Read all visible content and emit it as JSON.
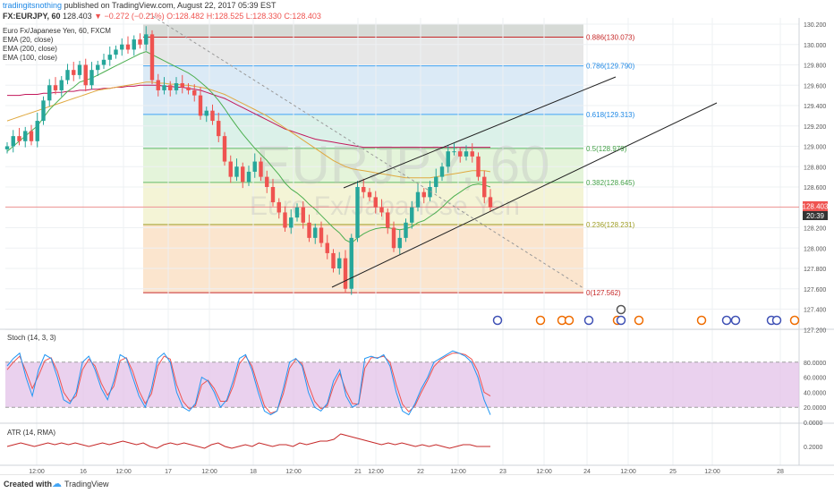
{
  "header": {
    "publisher": "tradingitsnothing",
    "published_text": "published on TradingView.com, August 22, 2017 05:39 EST",
    "symbol": "FX:EURJPY, 60",
    "last": "128.403",
    "change": "−0.272 (−0.21%)",
    "ohlc_o": "O:128.482",
    "ohlc_h": "H:128.525",
    "ohlc_l": "L:128.330",
    "ohlc_c": "C:128.403"
  },
  "legend": {
    "name": "Euro Fx/Japanese Yen, 60, FXCM",
    "ema20": "EMA (20, close)",
    "ema200": "EMA (200, close)",
    "ema100": "EMA (100, close)"
  },
  "watermark": {
    "symbol": "EURJPY, 60",
    "name": "Euro Fx/Japanese Yen"
  },
  "price_tag": {
    "value": "128.403",
    "countdown": "20:39"
  },
  "footer": {
    "created_with": "Created with",
    "brand": "TradingView"
  },
  "chart_data": [
    {
      "type": "candlestick",
      "title": "Euro Fx/Japanese Yen, 60, FXCM",
      "y_ticks": [
        "130.200",
        "130.000",
        "129.800",
        "129.600",
        "129.400",
        "129.200",
        "129.000",
        "128.800",
        "128.600",
        "128.400",
        "128.200",
        "128.000",
        "127.800",
        "127.600",
        "127.400",
        "127.200"
      ],
      "x_ticks": [
        "12:00",
        "16",
        "12:00",
        "17",
        "12:00",
        "18",
        "12:00",
        "21",
        "12:00",
        "22",
        "12:00",
        "23",
        "12:00",
        "24",
        "12:00",
        "25",
        "12:00",
        "28"
      ],
      "ylim": [
        127.2,
        130.2
      ],
      "fibonacci": [
        {
          "level": "0.886",
          "value": 130.073
        },
        {
          "level": "0.786",
          "value": 129.79
        },
        {
          "level": "0.618",
          "value": 129.313
        },
        {
          "level": "0.5",
          "value": 128.979
        },
        {
          "level": "0.382",
          "value": 128.645
        },
        {
          "level": "0.236",
          "value": 128.231
        },
        {
          "level": "0",
          "value": 127.562
        }
      ],
      "closes": [
        129.0,
        129.1,
        129.05,
        129.15,
        129.05,
        129.25,
        129.45,
        129.6,
        129.55,
        129.65,
        129.75,
        129.7,
        129.8,
        129.6,
        129.75,
        129.8,
        129.85,
        129.9,
        129.95,
        130.0,
        129.95,
        130.05,
        130.0,
        130.1,
        129.65,
        129.55,
        129.6,
        129.55,
        129.62,
        129.58,
        129.55,
        129.5,
        129.3,
        129.35,
        129.25,
        129.1,
        128.85,
        128.7,
        128.8,
        128.65,
        128.75,
        128.85,
        128.7,
        128.6,
        128.45,
        128.35,
        128.2,
        128.3,
        128.4,
        128.25,
        128.1,
        128.2,
        128.05,
        127.95,
        127.8,
        127.9,
        127.6,
        128.1,
        128.6,
        128.55,
        128.5,
        128.4,
        128.35,
        128.2,
        128.0,
        128.1,
        128.25,
        128.4,
        128.55,
        128.5,
        128.6,
        128.7,
        128.8,
        128.95,
        128.95,
        128.9,
        128.95,
        128.9,
        128.7,
        128.5,
        128.4
      ],
      "ema20": [
        128.95,
        129.0,
        129.05,
        129.1,
        129.15,
        129.2,
        129.28,
        129.36,
        129.42,
        129.48,
        129.54,
        129.58,
        129.63,
        129.65,
        129.67,
        129.7,
        129.73,
        129.76,
        129.79,
        129.82,
        129.85,
        129.88,
        129.91,
        129.93,
        129.9,
        129.87,
        129.84,
        129.81,
        129.78,
        129.75,
        129.72,
        129.68,
        129.63,
        129.58,
        129.52,
        129.45,
        129.37,
        129.28,
        129.2,
        129.12,
        129.05,
        128.98,
        128.92,
        128.86,
        128.79,
        128.72,
        128.64,
        128.58,
        128.54,
        128.49,
        128.43,
        128.38,
        128.32,
        128.26,
        128.2,
        128.15,
        128.08,
        128.05,
        128.1,
        128.14,
        128.17,
        128.19,
        128.2,
        128.2,
        128.19,
        128.18,
        128.19,
        128.21,
        128.25,
        128.27,
        128.31,
        128.35,
        128.4,
        128.46,
        128.51,
        128.55,
        128.59,
        128.62,
        128.63,
        128.62,
        128.6
      ],
      "ema100": [
        129.25,
        129.27,
        129.29,
        129.31,
        129.33,
        129.35,
        129.37,
        129.39,
        129.41,
        129.43,
        129.45,
        129.47,
        129.49,
        129.51,
        129.53,
        129.55,
        129.56,
        129.57,
        129.58,
        129.59,
        129.6,
        129.61,
        129.62,
        129.63,
        129.63,
        129.62,
        129.62,
        129.61,
        129.61,
        129.6,
        129.6,
        129.59,
        129.58,
        129.57,
        129.55,
        129.53,
        129.51,
        129.48,
        129.45,
        129.42,
        129.39,
        129.36,
        129.33,
        129.3,
        129.26,
        129.22,
        129.18,
        129.14,
        129.1,
        129.06,
        129.02,
        128.98,
        128.94,
        128.9,
        128.86,
        128.83,
        128.8,
        128.78,
        128.77,
        128.76,
        128.75,
        128.74,
        128.73,
        128.72,
        128.71,
        128.7,
        128.69,
        128.69,
        128.69,
        128.69,
        128.69,
        128.7,
        128.71,
        128.72,
        128.73,
        128.74,
        128.75,
        128.76,
        128.76,
        128.76,
        128.75
      ],
      "ema200": [
        129.5,
        129.5,
        129.5,
        129.51,
        129.51,
        129.51,
        129.52,
        129.52,
        129.53,
        129.53,
        129.54,
        129.54,
        129.55,
        129.55,
        129.56,
        129.56,
        129.57,
        129.57,
        129.58,
        129.58,
        129.59,
        129.59,
        129.6,
        129.6,
        129.6,
        129.6,
        129.59,
        129.59,
        129.58,
        129.58,
        129.57,
        129.56,
        129.55,
        129.53,
        129.51,
        129.49,
        129.47,
        129.44,
        129.41,
        129.38,
        129.35,
        129.32,
        129.29,
        129.26,
        129.23,
        129.2,
        129.17,
        129.15,
        129.13,
        129.11,
        129.09,
        129.07,
        129.06,
        129.05,
        129.04,
        129.03,
        129.02,
        129.01,
        129.0,
        128.99,
        128.99,
        128.99,
        128.99,
        128.99,
        128.99,
        128.99,
        128.99,
        128.99,
        128.99,
        128.99,
        128.99,
        128.99,
        128.99,
        128.99,
        128.99,
        128.99,
        128.99,
        128.99,
        128.99,
        128.99,
        128.99
      ]
    },
    {
      "type": "line",
      "title": "Stoch (14, 3, 3)",
      "y_ticks": [
        "80.0000",
        "60.0000",
        "40.0000",
        "20.0000",
        "0.0000"
      ],
      "ylim": [
        0,
        100
      ],
      "series": [
        {
          "name": "%K",
          "values": [
            75,
            85,
            92,
            60,
            35,
            70,
            90,
            85,
            60,
            30,
            25,
            40,
            80,
            88,
            70,
            45,
            30,
            55,
            90,
            85,
            60,
            35,
            20,
            45,
            85,
            92,
            80,
            40,
            20,
            15,
            25,
            60,
            55,
            40,
            20,
            30,
            55,
            85,
            90,
            70,
            40,
            15,
            10,
            15,
            45,
            80,
            85,
            75,
            40,
            20,
            15,
            25,
            55,
            70,
            35,
            20,
            25,
            85,
            88,
            85,
            90,
            75,
            40,
            15,
            10,
            25,
            45,
            60,
            80,
            85,
            90,
            95,
            92,
            88,
            80,
            60,
            30,
            10
          ]
        },
        {
          "name": "%D",
          "values": [
            70,
            80,
            88,
            68,
            45,
            62,
            82,
            86,
            68,
            40,
            28,
            35,
            70,
            84,
            75,
            52,
            36,
            48,
            82,
            86,
            68,
            42,
            25,
            38,
            75,
            88,
            84,
            50,
            28,
            18,
            22,
            50,
            56,
            45,
            28,
            28,
            48,
            78,
            88,
            75,
            48,
            22,
            12,
            15,
            38,
            72,
            84,
            78,
            50,
            28,
            18,
            22,
            48,
            65,
            42,
            25,
            24,
            72,
            86,
            86,
            88,
            80,
            50,
            24,
            14,
            22,
            40,
            56,
            74,
            83,
            88,
            92,
            92,
            90,
            84,
            68,
            40,
            35
          ]
        }
      ]
    },
    {
      "type": "line",
      "title": "ATR (14, RMA)",
      "y_ticks": [
        "0.2000"
      ],
      "series": [
        {
          "name": "ATR",
          "values": [
            0.2,
            0.21,
            0.22,
            0.21,
            0.2,
            0.21,
            0.22,
            0.21,
            0.22,
            0.21,
            0.22,
            0.21,
            0.2,
            0.21,
            0.22,
            0.21,
            0.22,
            0.23,
            0.22,
            0.21,
            0.22,
            0.2,
            0.19,
            0.21,
            0.22,
            0.21,
            0.22,
            0.21,
            0.2,
            0.19,
            0.21,
            0.22,
            0.2,
            0.19,
            0.2,
            0.21,
            0.2,
            0.22,
            0.21,
            0.2,
            0.21,
            0.21,
            0.2,
            0.22,
            0.21,
            0.22,
            0.23,
            0.23,
            0.24,
            0.27,
            0.26,
            0.25,
            0.24,
            0.23,
            0.22,
            0.21,
            0.22,
            0.21,
            0.22,
            0.21,
            0.2,
            0.21,
            0.2,
            0.21,
            0.2,
            0.19,
            0.2,
            0.21,
            0.21,
            0.2,
            0.2,
            0.2
          ]
        }
      ]
    }
  ],
  "colors": {
    "up": "#26a69a",
    "down": "#ef5350",
    "ema20": "#4caf50",
    "ema100": "#e0a940",
    "ema200": "#c2185b",
    "stoch_k": "#2196f3",
    "stoch_d": "#ef5350",
    "stoch_band": "#e1bee7",
    "atr": "#c62828",
    "channel": "#222222",
    "fib_red": "#f4c7c3",
    "fib_orange": "#fae1c6",
    "fib_yellow": "#f2f2cf",
    "fib_green": "#dff2d4",
    "fib_teal": "#d5eee5",
    "fib_blue": "#d5e6f5",
    "fib_grey": "#e3e3e3",
    "fib_dark": "#cfd3cf"
  }
}
